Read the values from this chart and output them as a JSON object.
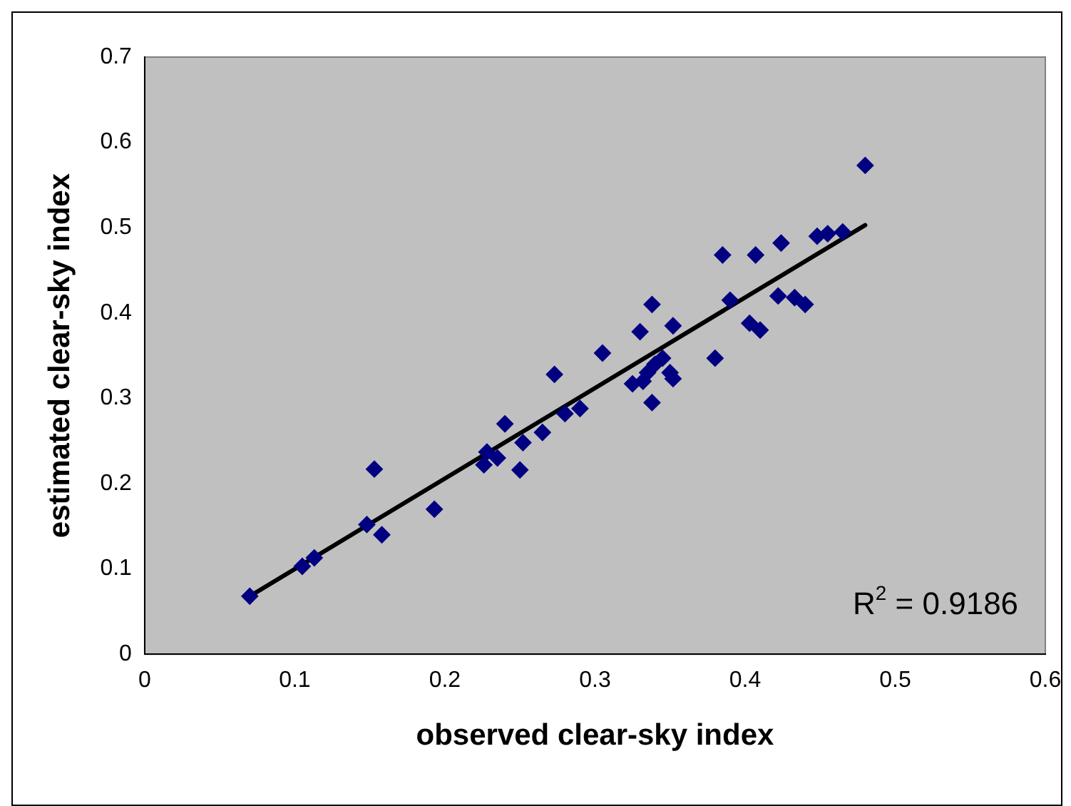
{
  "chart_data": {
    "type": "scatter",
    "xlabel": "observed clear-sky index",
    "ylabel": "estimated clear-sky index",
    "xlim": [
      0,
      0.6
    ],
    "xticks": [
      0,
      0.1,
      0.2,
      0.3,
      0.4,
      0.5,
      0.6
    ],
    "ylim": [
      0,
      0.7
    ],
    "yticks": [
      0,
      0.1,
      0.2,
      0.3,
      0.4,
      0.5,
      0.6,
      0.7
    ],
    "grid": false,
    "legend": false,
    "marker": "diamond",
    "annotations": [
      "R$^{2}$ = 0.9186"
    ],
    "series": [
      {
        "color": "#000080",
        "x": [
          0.07,
          0.105,
          0.113,
          0.148,
          0.153,
          0.158,
          0.193,
          0.226,
          0.228,
          0.235,
          0.24,
          0.25,
          0.252,
          0.265,
          0.273,
          0.28,
          0.29,
          0.305,
          0.325,
          0.33,
          0.332,
          0.335,
          0.338,
          0.338,
          0.34,
          0.345,
          0.35,
          0.352,
          0.352,
          0.38,
          0.385,
          0.39,
          0.403,
          0.407,
          0.41,
          0.422,
          0.424,
          0.433,
          0.44,
          0.448,
          0.455,
          0.465,
          0.48
        ],
        "values": [
          0.068,
          0.103,
          0.113,
          0.152,
          0.217,
          0.14,
          0.17,
          0.222,
          0.237,
          0.23,
          0.27,
          0.216,
          0.248,
          0.26,
          0.328,
          0.282,
          0.288,
          0.353,
          0.317,
          0.378,
          0.32,
          0.33,
          0.295,
          0.41,
          0.34,
          0.347,
          0.33,
          0.323,
          0.385,
          0.347,
          0.468,
          0.415,
          0.388,
          0.468,
          0.38,
          0.42,
          0.482,
          0.418,
          0.41,
          0.49,
          0.493,
          0.495,
          0.573
        ]
      },
      {
        "type": "line",
        "color": "#000000",
        "marker": "none",
        "x": [
          0.07,
          0.48
        ],
        "values": [
          0.068,
          0.503
        ]
      }
    ]
  }
}
